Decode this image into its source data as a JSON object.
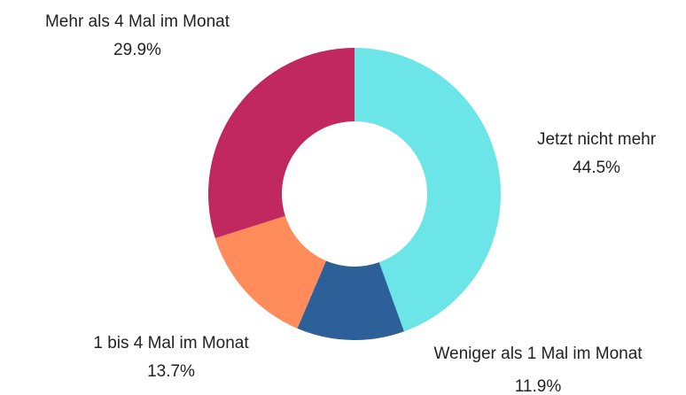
{
  "chart_data": {
    "type": "donut",
    "categories": [
      "Jetzt nicht mehr",
      "Weniger als 1 Mal im Monat",
      "1 bis 4 Mal im Monat",
      "Mehr als 4 Mal im Monat"
    ],
    "values": [
      44.5,
      11.9,
      13.7,
      29.9
    ],
    "value_labels": [
      "44.5%",
      "11.9%",
      "13.7%",
      "29.9%"
    ],
    "colors": [
      "#6ce5e8",
      "#2d5f99",
      "#ff8c5a",
      "#c0285f"
    ]
  }
}
